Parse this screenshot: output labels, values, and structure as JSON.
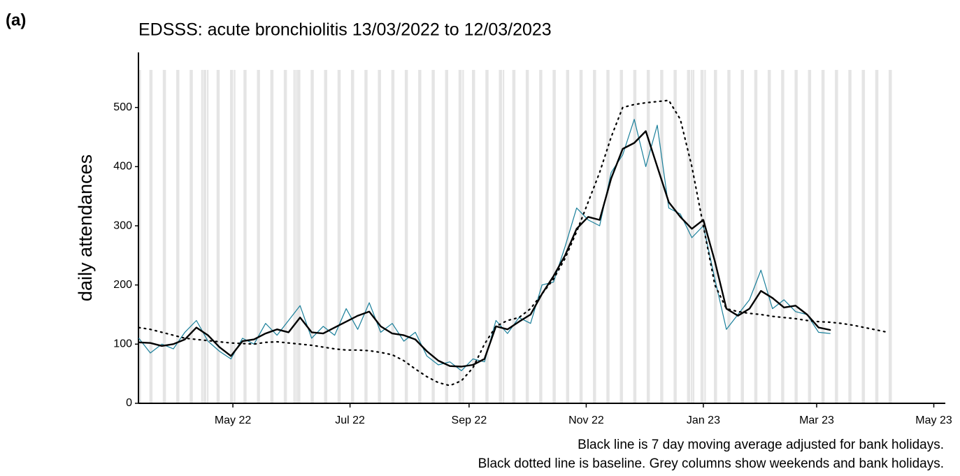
{
  "panel_label": "(a)",
  "chart_data": {
    "type": "line",
    "title": "EDSSS: acute bronchiolitis 13/03/2022 to 12/03/2023",
    "y_label": "daily attendances",
    "notes": [
      "Black line is 7 day moving average adjusted for bank holidays.",
      "Black dotted line is baseline. Grey columns show weekends and bank holidays."
    ],
    "xlim": [
      -2,
      420
    ],
    "xticks": [
      {
        "value": 49,
        "label": "May 22"
      },
      {
        "value": 110,
        "label": "Jul 22"
      },
      {
        "value": 172,
        "label": "Sep 22"
      },
      {
        "value": 233,
        "label": "Nov 22"
      },
      {
        "value": 294,
        "label": "Jan 23"
      },
      {
        "value": 353,
        "label": "Mar 23"
      },
      {
        "value": 414,
        "label": "May 23"
      }
    ],
    "ylim": [
      0,
      593
    ],
    "yticks": [
      0,
      100,
      200,
      300,
      400,
      500
    ],
    "weekends": [
      0,
      6,
      13,
      20,
      27,
      34,
      41,
      48,
      55,
      62,
      69,
      76,
      83,
      90,
      97,
      104,
      111,
      118,
      125,
      132,
      139,
      146,
      153,
      160,
      167,
      174,
      181,
      188,
      195,
      202,
      209,
      216,
      223,
      230,
      237,
      244,
      251,
      258,
      265,
      272,
      279,
      286,
      293,
      300,
      307,
      314,
      321,
      328,
      335,
      342,
      349,
      356,
      363,
      370,
      377,
      384,
      391
    ],
    "bank_holidays": [
      33,
      36,
      50,
      81,
      82,
      169,
      190,
      288,
      289,
      295
    ],
    "weekend_color": "#e5e5e5",
    "x": [
      0,
      6,
      12,
      18,
      24,
      30,
      36,
      42,
      48,
      54,
      60,
      66,
      72,
      78,
      84,
      90,
      96,
      102,
      108,
      114,
      120,
      126,
      132,
      138,
      144,
      150,
      156,
      162,
      168,
      174,
      180,
      186,
      192,
      198,
      204,
      210,
      216,
      222,
      228,
      234,
      240,
      246,
      252,
      258,
      264,
      270,
      276,
      282,
      288,
      294,
      300,
      306,
      312,
      318,
      324,
      330,
      336,
      342,
      348,
      354,
      360,
      366,
      372,
      378,
      384,
      390
    ],
    "series": [
      {
        "name": "daily attendances",
        "color": "#1a7f9a",
        "width": 1.2,
        "dash": "none",
        "values": [
          110,
          85,
          100,
          92,
          120,
          140,
          105,
          88,
          75,
          110,
          100,
          135,
          115,
          140,
          165,
          110,
          130,
          115,
          160,
          125,
          170,
          120,
          135,
          105,
          120,
          80,
          65,
          70,
          55,
          75,
          70,
          140,
          118,
          145,
          135,
          200,
          205,
          265,
          330,
          310,
          300,
          390,
          420,
          480,
          400,
          470,
          330,
          320,
          280,
          300,
          210,
          125,
          150,
          175,
          225,
          160,
          175,
          155,
          150,
          120,
          118,
          null,
          null,
          null,
          null,
          null
        ]
      },
      {
        "name": "7 day moving average",
        "color": "#000000",
        "width": 2.4,
        "dash": "none",
        "values": [
          103,
          102,
          97,
          100,
          108,
          128,
          115,
          95,
          80,
          105,
          108,
          118,
          125,
          120,
          145,
          120,
          118,
          128,
          138,
          148,
          155,
          130,
          118,
          115,
          108,
          88,
          72,
          63,
          62,
          65,
          75,
          130,
          125,
          138,
          150,
          185,
          215,
          250,
          295,
          315,
          310,
          380,
          430,
          440,
          460,
          400,
          340,
          315,
          295,
          310,
          240,
          160,
          148,
          160,
          190,
          178,
          162,
          165,
          150,
          128,
          124,
          null,
          null,
          null,
          null,
          null
        ]
      },
      {
        "name": "baseline",
        "color": "#000000",
        "width": 2.2,
        "dash": "2 6",
        "values": [
          128,
          125,
          120,
          115,
          110,
          108,
          106,
          104,
          102,
          101,
          100,
          103,
          104,
          102,
          100,
          98,
          95,
          92,
          90,
          90,
          89,
          86,
          82,
          72,
          58,
          45,
          35,
          30,
          38,
          60,
          100,
          130,
          140,
          145,
          160,
          185,
          210,
          245,
          290,
          340,
          390,
          450,
          500,
          505,
          508,
          510,
          512,
          480,
          400,
          300,
          200,
          160,
          155,
          152,
          150,
          147,
          145,
          143,
          140,
          138,
          137,
          135,
          132,
          128,
          124,
          120
        ]
      }
    ]
  }
}
